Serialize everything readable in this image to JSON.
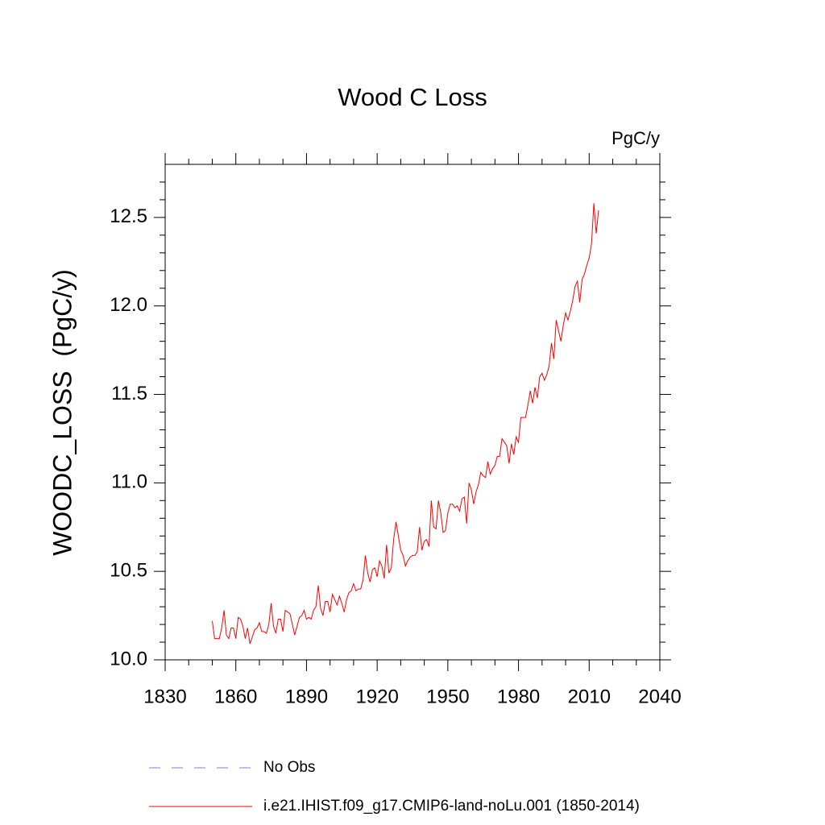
{
  "chart_data": {
    "type": "line",
    "title": "Wood C Loss",
    "units": "PgC/y",
    "ylabel": "WOODC_LOSS  (PgC/y)",
    "x": [
      1850,
      1851,
      1852,
      1853,
      1854,
      1855,
      1856,
      1857,
      1858,
      1859,
      1860,
      1861,
      1862,
      1863,
      1864,
      1865,
      1866,
      1867,
      1868,
      1869,
      1870,
      1871,
      1872,
      1873,
      1874,
      1875,
      1876,
      1877,
      1878,
      1879,
      1880,
      1881,
      1882,
      1883,
      1884,
      1885,
      1886,
      1887,
      1888,
      1889,
      1890,
      1891,
      1892,
      1893,
      1894,
      1895,
      1896,
      1897,
      1898,
      1899,
      1900,
      1901,
      1902,
      1903,
      1904,
      1905,
      1906,
      1907,
      1908,
      1909,
      1910,
      1911,
      1912,
      1913,
      1914,
      1915,
      1916,
      1917,
      1918,
      1919,
      1920,
      1921,
      1922,
      1923,
      1924,
      1925,
      1926,
      1927,
      1928,
      1929,
      1930,
      1931,
      1932,
      1933,
      1934,
      1935,
      1936,
      1937,
      1938,
      1939,
      1940,
      1941,
      1942,
      1943,
      1944,
      1945,
      1946,
      1947,
      1948,
      1949,
      1950,
      1951,
      1952,
      1953,
      1954,
      1955,
      1956,
      1957,
      1958,
      1959,
      1960,
      1961,
      1962,
      1963,
      1964,
      1965,
      1966,
      1967,
      1968,
      1969,
      1970,
      1971,
      1972,
      1973,
      1974,
      1975,
      1976,
      1977,
      1978,
      1979,
      1980,
      1981,
      1982,
      1983,
      1984,
      1985,
      1986,
      1987,
      1988,
      1989,
      1990,
      1991,
      1992,
      1993,
      1994,
      1995,
      1996,
      1997,
      1998,
      1999,
      2000,
      2001,
      2002,
      2003,
      2004,
      2005,
      2006,
      2007,
      2008,
      2009,
      2010,
      2011,
      2012,
      2013,
      2014
    ],
    "series": [
      {
        "name": "i.e21.IHIST.f09_g17.CMIP6-land-noLu.001 (1850-2014)",
        "color": "#ff0000",
        "values": [
          10.22,
          10.12,
          10.12,
          10.12,
          10.18,
          10.28,
          10.14,
          10.12,
          10.18,
          10.18,
          10.12,
          10.24,
          10.23,
          10.19,
          10.12,
          10.18,
          10.09,
          10.13,
          10.17,
          10.18,
          10.21,
          10.16,
          10.16,
          10.15,
          10.2,
          10.32,
          10.19,
          10.15,
          10.23,
          10.23,
          10.16,
          10.28,
          10.27,
          10.26,
          10.2,
          10.14,
          10.19,
          10.24,
          10.25,
          10.28,
          10.23,
          10.24,
          10.23,
          10.28,
          10.3,
          10.42,
          10.29,
          10.25,
          10.33,
          10.33,
          10.27,
          10.37,
          10.34,
          10.31,
          10.36,
          10.32,
          10.27,
          10.34,
          10.38,
          10.39,
          10.43,
          10.39,
          10.4,
          10.4,
          10.45,
          10.59,
          10.49,
          10.44,
          10.51,
          10.52,
          10.47,
          10.56,
          10.53,
          10.46,
          10.65,
          10.49,
          10.52,
          10.68,
          10.78,
          10.7,
          10.62,
          10.59,
          10.53,
          10.56,
          10.58,
          10.59,
          10.59,
          10.61,
          10.75,
          10.62,
          10.67,
          10.68,
          10.64,
          10.9,
          10.75,
          10.74,
          10.9,
          10.83,
          10.72,
          10.73,
          10.83,
          10.88,
          10.88,
          10.86,
          10.87,
          10.84,
          10.91,
          10.92,
          10.77,
          11.0,
          10.96,
          10.88,
          10.95,
          10.99,
          11.06,
          11.04,
          11.03,
          11.12,
          11.05,
          11.08,
          11.1,
          11.15,
          11.15,
          11.25,
          11.23,
          11.21,
          11.11,
          11.22,
          11.16,
          11.26,
          11.23,
          11.37,
          11.37,
          11.37,
          11.44,
          11.52,
          11.45,
          11.54,
          11.48,
          11.6,
          11.62,
          11.58,
          11.61,
          11.66,
          11.79,
          11.7,
          11.92,
          11.86,
          11.8,
          11.89,
          11.96,
          11.92,
          11.97,
          12.03,
          12.11,
          12.14,
          12.02,
          12.15,
          12.18,
          12.23,
          12.27,
          12.35,
          12.58,
          12.41,
          12.54
        ]
      }
    ],
    "obs": {
      "name": "No Obs",
      "color": "#7b7be0",
      "dashed": true
    },
    "xlim": [
      1830,
      2040
    ],
    "xticks": [
      1830,
      1860,
      1890,
      1920,
      1950,
      1980,
      2010,
      2040
    ],
    "xminorticks": [
      1840,
      1850,
      1870,
      1880,
      1900,
      1910,
      1930,
      1940,
      1960,
      1970,
      1990,
      2000,
      2020,
      2030
    ],
    "ylim": [
      10,
      12.8
    ],
    "yticks": [
      {
        "value": 10,
        "label": "10.0"
      },
      10.5,
      {
        "value": 11,
        "label": "11.0"
      },
      11.5,
      {
        "value": 12,
        "label": "12.0"
      },
      12.5
    ],
    "yminorticks": [
      10.1,
      10.2,
      10.3,
      10.4,
      10.6,
      10.7,
      10.8,
      10.9,
      11.1,
      11.2,
      11.3,
      11.4,
      11.6,
      11.7,
      11.8,
      11.9,
      12.1,
      12.2,
      12.3,
      12.4,
      12.6,
      12.7
    ]
  }
}
